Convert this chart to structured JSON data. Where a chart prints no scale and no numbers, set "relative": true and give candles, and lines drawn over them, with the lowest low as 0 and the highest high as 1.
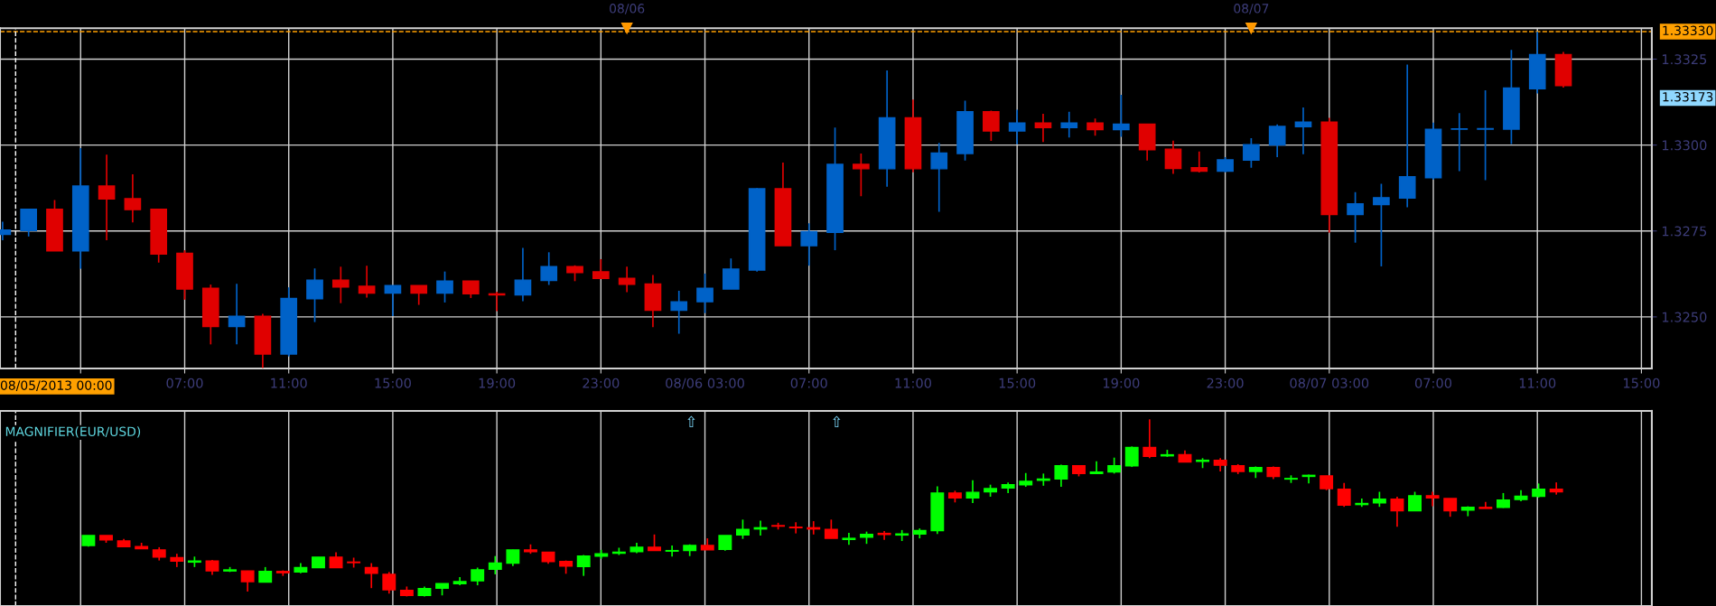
{
  "chart_data": [
    {
      "type": "candlestick",
      "x": [
        "2013-08-05T00:00",
        "2013-08-05T01:00",
        "2013-08-05T02:00",
        "2013-08-05T03:00",
        "2013-08-05T04:00",
        "2013-08-05T05:00",
        "2013-08-05T06:00",
        "2013-08-05T07:00",
        "2013-08-05T08:00",
        "2013-08-05T09:00",
        "2013-08-05T10:00",
        "2013-08-05T11:00",
        "2013-08-05T12:00",
        "2013-08-05T13:00",
        "2013-08-05T14:00",
        "2013-08-05T15:00",
        "2013-08-05T16:00",
        "2013-08-05T17:00",
        "2013-08-05T18:00",
        "2013-08-05T19:00",
        "2013-08-05T20:00",
        "2013-08-05T21:00",
        "2013-08-05T22:00",
        "2013-08-05T23:00",
        "2013-08-06T00:00",
        "2013-08-06T01:00",
        "2013-08-06T02:00",
        "2013-08-06T03:00",
        "2013-08-06T04:00",
        "2013-08-06T05:00",
        "2013-08-06T06:00",
        "2013-08-06T07:00",
        "2013-08-06T08:00",
        "2013-08-06T09:00",
        "2013-08-06T10:00",
        "2013-08-06T11:00",
        "2013-08-06T12:00",
        "2013-08-06T13:00",
        "2013-08-06T14:00",
        "2013-08-06T15:00",
        "2013-08-06T16:00",
        "2013-08-06T17:00",
        "2013-08-06T18:00",
        "2013-08-06T19:00",
        "2013-08-06T20:00",
        "2013-08-06T21:00",
        "2013-08-06T22:00",
        "2013-08-06T23:00",
        "2013-08-07T00:00",
        "2013-08-07T01:00",
        "2013-08-07T02:00",
        "2013-08-07T03:00",
        "2013-08-07T04:00",
        "2013-08-07T05:00",
        "2013-08-07T06:00",
        "2013-08-07T07:00",
        "2013-08-07T08:00",
        "2013-08-07T09:00",
        "2013-08-07T10:00",
        "2013-08-07T11:00",
        "2013-08-07T12:00"
      ],
      "ohlc": [
        [
          1.3274,
          1.32777,
          1.32723,
          1.32753
        ],
        [
          1.32751,
          1.32813,
          1.32734,
          1.32813
        ],
        [
          1.32813,
          1.3284,
          1.32692,
          1.32692
        ],
        [
          1.32692,
          1.32991,
          1.3264,
          1.32881
        ],
        [
          1.32881,
          1.32972,
          1.32723,
          1.32843
        ],
        [
          1.32844,
          1.32915,
          1.32775,
          1.32812
        ],
        [
          1.32813,
          1.32815,
          1.32658,
          1.32683
        ],
        [
          1.32685,
          1.32694,
          1.3255,
          1.32581
        ],
        [
          1.32583,
          1.32594,
          1.3242,
          1.32472
        ],
        [
          1.32472,
          1.32596,
          1.3242,
          1.32502
        ],
        [
          1.32502,
          1.32509,
          1.32351,
          1.32392
        ],
        [
          1.32392,
          1.32586,
          1.32385,
          1.32554
        ],
        [
          1.32553,
          1.32641,
          1.32485,
          1.32607
        ],
        [
          1.32607,
          1.32646,
          1.3254,
          1.32587
        ],
        [
          1.32589,
          1.32649,
          1.32556,
          1.32569
        ],
        [
          1.32569,
          1.32591,
          1.32502,
          1.32591
        ],
        [
          1.32591,
          1.32591,
          1.32535,
          1.32569
        ],
        [
          1.32569,
          1.32632,
          1.32542,
          1.32604
        ],
        [
          1.32604,
          1.32604,
          1.32555,
          1.32567
        ],
        [
          1.32567,
          1.32573,
          1.32517,
          1.32564
        ],
        [
          1.32564,
          1.32701,
          1.32546,
          1.32607
        ],
        [
          1.32606,
          1.32688,
          1.32593,
          1.32646
        ],
        [
          1.32646,
          1.3265,
          1.32604,
          1.32629
        ],
        [
          1.32631,
          1.32668,
          1.32612,
          1.32612
        ],
        [
          1.32612,
          1.32646,
          1.32572,
          1.32595
        ],
        [
          1.32596,
          1.32622,
          1.3247,
          1.32519
        ],
        [
          1.32519,
          1.32576,
          1.32451,
          1.32544
        ],
        [
          1.32544,
          1.32626,
          1.32511,
          1.32583
        ],
        [
          1.32581,
          1.3267,
          1.32581,
          1.32639
        ],
        [
          1.32636,
          1.32875,
          1.32632,
          1.32873
        ],
        [
          1.32873,
          1.32949,
          1.32707,
          1.32707
        ],
        [
          1.32707,
          1.32772,
          1.32649,
          1.32748
        ],
        [
          1.32746,
          1.33051,
          1.32694,
          1.32944
        ],
        [
          1.32944,
          1.32975,
          1.32851,
          1.32931
        ],
        [
          1.32931,
          1.33217,
          1.32879,
          1.33079
        ],
        [
          1.33079,
          1.33132,
          1.32921,
          1.32931
        ],
        [
          1.32931,
          1.33006,
          1.32806,
          1.32977
        ],
        [
          1.32975,
          1.33129,
          1.32955,
          1.33097
        ],
        [
          1.33097,
          1.331,
          1.33012,
          1.33041
        ],
        [
          1.33041,
          1.33103,
          1.33002,
          1.33064
        ],
        [
          1.33064,
          1.33091,
          1.33009,
          1.33051
        ],
        [
          1.33051,
          1.33097,
          1.33022,
          1.33064
        ],
        [
          1.33064,
          1.33077,
          1.33027,
          1.33045
        ],
        [
          1.33045,
          1.33146,
          1.33024,
          1.33061
        ],
        [
          1.33061,
          1.33061,
          1.32955,
          1.32986
        ],
        [
          1.32988,
          1.33013,
          1.32916,
          1.32932
        ],
        [
          1.32934,
          1.32981,
          1.3292,
          1.32924
        ],
        [
          1.32924,
          1.32965,
          1.32921,
          1.32957
        ],
        [
          1.32956,
          1.3302,
          1.32934,
          1.33001
        ],
        [
          1.33,
          1.3306,
          1.32965,
          1.33054
        ],
        [
          1.33053,
          1.33109,
          1.32973,
          1.33067
        ],
        [
          1.33067,
          1.33079,
          1.32745,
          1.32798
        ],
        [
          1.32798,
          1.32863,
          1.32716,
          1.32829
        ],
        [
          1.32827,
          1.32887,
          1.32647,
          1.32847
        ],
        [
          1.32846,
          1.33234,
          1.32819,
          1.32908
        ],
        [
          1.32905,
          1.33065,
          1.32899,
          1.33046
        ],
        [
          1.33046,
          1.33093,
          1.32924,
          1.33047
        ],
        [
          1.33046,
          1.33159,
          1.32898,
          1.33048
        ],
        [
          1.33046,
          1.33277,
          1.33003,
          1.33166
        ],
        [
          1.33164,
          1.3333,
          1.3315,
          1.33263
        ],
        [
          1.33263,
          1.33271,
          1.33167,
          1.33173
        ]
      ],
      "colors": [
        "#0062c8",
        "#0062c8",
        "#e00000",
        "#0062c8",
        "#e00000",
        "#e00000",
        "#e00000",
        "#e00000",
        "#e00000",
        "#0062c8",
        "#e00000",
        "#0062c8",
        "#0062c8",
        "#e00000",
        "#e00000",
        "#0062c8",
        "#e00000",
        "#0062c8",
        "#e00000",
        "#e00000",
        "#0062c8",
        "#0062c8",
        "#e00000",
        "#e00000",
        "#e00000",
        "#e00000",
        "#0062c8",
        "#0062c8",
        "#0062c8",
        "#0062c8",
        "#e00000",
        "#0062c8",
        "#0062c8",
        "#e00000",
        "#0062c8",
        "#e00000",
        "#0062c8",
        "#0062c8",
        "#e00000",
        "#0062c8",
        "#e00000",
        "#0062c8",
        "#e00000",
        "#0062c8",
        "#e00000",
        "#e00000",
        "#e00000",
        "#0062c8",
        "#0062c8",
        "#0062c8",
        "#0062c8",
        "#e00000",
        "#0062c8",
        "#0062c8",
        "#0062c8",
        "#0062c8",
        "#0062c8",
        "#0062c8",
        "#0062c8",
        "#0062c8",
        "#e00000"
      ],
      "xlim": [
        "2013-08-04T23:54",
        "2013-08-07T15:24"
      ],
      "xticks": [
        {
          "value": "2013-08-05T03:00",
          "label": null
        },
        {
          "value": "2013-08-05T07:00",
          "label": "07:00"
        },
        {
          "value": "2013-08-05T11:00",
          "label": "11:00"
        },
        {
          "value": "2013-08-05T15:00",
          "label": "15:00"
        },
        {
          "value": "2013-08-05T19:00",
          "label": "19:00"
        },
        {
          "value": "2013-08-05T23:00",
          "label": "23:00"
        },
        {
          "value": "2013-08-06T03:00",
          "label": "08/06 03:00"
        },
        {
          "value": "2013-08-06T07:00",
          "label": "07:00"
        },
        {
          "value": "2013-08-06T11:00",
          "label": "11:00"
        },
        {
          "value": "2013-08-06T15:00",
          "label": "15:00"
        },
        {
          "value": "2013-08-06T19:00",
          "label": "19:00"
        },
        {
          "value": "2013-08-06T23:00",
          "label": "23:00"
        },
        {
          "value": "2013-08-07T03:00",
          "label": "08/07 03:00"
        },
        {
          "value": "2013-08-07T07:00",
          "label": "07:00"
        },
        {
          "value": "2013-08-07T11:00",
          "label": "11:00"
        },
        {
          "value": "2013-08-07T15:00",
          "label": "15:00"
        }
      ],
      "x2lim": [
        "2013-08-04T23:54",
        "2013-08-07T15:24"
      ],
      "x2ticks": [
        {
          "value": "2013-08-06",
          "label": "08/06"
        },
        {
          "value": "2013-08-07",
          "label": "08/07"
        }
      ],
      "ylim": [
        1.3235,
        1.3334
      ],
      "yticks": [
        {
          "value": 1.325,
          "label": "1.3250"
        },
        {
          "value": 1.3275,
          "label": "1.3275"
        },
        {
          "value": 1.33,
          "label": "1.3300"
        },
        {
          "value": 1.3325,
          "label": "1.3325"
        }
      ],
      "grid": true,
      "ref_lines": [
        {
          "axis": "y",
          "value": 1.3333,
          "label": "1.33330",
          "color": "#ffa000",
          "line_style": "dashed"
        },
        {
          "axis": "x",
          "value": "2013-08-05T00:30",
          "color": "#ffffff",
          "line_style": "dashed"
        }
      ],
      "annotations": [
        "08/05/2013 00:00",
        "1.33173"
      ]
    },
    {
      "type": "candlestick",
      "title": "MAGNIFIER(EUR/USD)",
      "relative": true,
      "categories": [
        null,
        null,
        null,
        null,
        null,
        null,
        null,
        null,
        null,
        null,
        null,
        null,
        null,
        null,
        null,
        null,
        null,
        null,
        null,
        null,
        null,
        null,
        null,
        null,
        null,
        null,
        null,
        null,
        null,
        null,
        null,
        null,
        null,
        null,
        null,
        null,
        null,
        null,
        null,
        null,
        null,
        null,
        null,
        null,
        null,
        null,
        null,
        null,
        null,
        null,
        null,
        null,
        null,
        null,
        null,
        null,
        null,
        null,
        null,
        null,
        null,
        null,
        null,
        null,
        null,
        null,
        null,
        null,
        null,
        null,
        null,
        null,
        null,
        null,
        null,
        null,
        null,
        null,
        null,
        null,
        null,
        null,
        null,
        null
      ],
      "ohlc": [
        [
          0.288,
          0.344,
          0.281,
          0.344
        ],
        [
          0.344,
          0.344,
          0.303,
          0.319
        ],
        [
          0.313,
          0.325,
          0.281,
          0.281
        ],
        [
          0.281,
          0.303,
          0.269,
          0.269
        ],
        [
          0.263,
          0.278,
          0.203,
          0.222
        ],
        [
          0.219,
          0.241,
          0.166,
          0.2
        ],
        [
          0.194,
          0.225,
          0.166,
          0.2
        ],
        [
          0.2,
          0.206,
          0.122,
          0.144
        ],
        [
          0.144,
          0.166,
          0.138,
          0.15
        ],
        [
          0.144,
          0.144,
          0.028,
          0.084
        ],
        [
          0.081,
          0.166,
          0.081,
          0.141
        ],
        [
          0.141,
          0.147,
          0.116,
          0.134
        ],
        [
          0.138,
          0.188,
          0.131,
          0.163
        ],
        [
          0.163,
          0.222,
          0.163,
          0.222
        ],
        [
          0.222,
          0.25,
          0.163,
          0.163
        ],
        [
          0.194,
          0.219,
          0.163,
          0.191
        ],
        [
          0.163,
          0.188,
          0.047,
          0.131
        ],
        [
          0.125,
          0.138,
          0.016,
          0.038
        ],
        [
          0.034,
          0.056,
          0.0,
          0.006
        ],
        [
          0.006,
          0.056,
          0.0,
          0.044
        ],
        [
          0.047,
          0.072,
          0.006,
          0.072
        ],
        [
          0.072,
          0.109,
          0.063,
          0.084
        ],
        [
          0.088,
          0.163,
          0.063,
          0.15
        ],
        [
          0.153,
          0.228,
          0.125,
          0.188
        ],
        [
          0.188,
          0.263,
          0.172,
          0.263
        ],
        [
          0.263,
          0.294,
          0.241,
          0.253
        ],
        [
          0.25,
          0.25,
          0.184,
          0.197
        ],
        [
          0.197,
          0.203,
          0.128,
          0.172
        ],
        [
          0.169,
          0.234,
          0.116,
          0.228
        ],
        [
          0.228,
          0.263,
          0.213,
          0.241
        ],
        [
          0.244,
          0.275,
          0.234,
          0.25
        ],
        [
          0.253,
          0.303,
          0.244,
          0.278
        ],
        [
          0.278,
          0.35,
          0.259,
          0.259
        ],
        [
          0.256,
          0.288,
          0.225,
          0.259
        ],
        [
          0.259,
          0.294,
          0.228,
          0.288
        ],
        [
          0.288,
          0.328,
          0.263,
          0.263
        ],
        [
          0.266,
          0.344,
          0.259,
          0.344
        ],
        [
          0.347,
          0.434,
          0.325,
          0.378
        ],
        [
          0.381,
          0.428,
          0.344,
          0.388
        ],
        [
          0.4,
          0.416,
          0.378,
          0.397
        ],
        [
          0.391,
          0.419,
          0.356,
          0.388
        ],
        [
          0.388,
          0.425,
          0.35,
          0.381
        ],
        [
          0.378,
          0.434,
          0.328,
          0.328
        ],
        [
          0.322,
          0.359,
          0.291,
          0.328
        ],
        [
          0.334,
          0.366,
          0.297,
          0.35
        ],
        [
          0.356,
          0.369,
          0.319,
          0.35
        ],
        [
          0.347,
          0.375,
          0.313,
          0.353
        ],
        [
          0.353,
          0.384,
          0.328,
          0.372
        ],
        [
          0.372,
          0.622,
          0.353,
          0.584
        ],
        [
          0.584,
          0.597,
          0.531,
          0.556
        ],
        [
          0.556,
          0.656,
          0.528,
          0.588
        ],
        [
          0.591,
          0.631,
          0.563,
          0.609
        ],
        [
          0.613,
          0.644,
          0.584,
          0.631
        ],
        [
          0.631,
          0.697,
          0.619,
          0.65
        ],
        [
          0.656,
          0.694,
          0.625,
          0.663
        ],
        [
          0.663,
          0.744,
          0.619,
          0.738
        ],
        [
          0.738,
          0.738,
          0.678,
          0.694
        ],
        [
          0.694,
          0.763,
          0.691,
          0.703
        ],
        [
          0.703,
          0.784,
          0.694,
          0.738
        ],
        [
          0.738,
          0.847,
          0.731,
          0.841
        ],
        [
          0.841,
          1.0,
          0.781,
          0.791
        ],
        [
          0.794,
          0.828,
          0.788,
          0.8
        ],
        [
          0.8,
          0.825,
          0.759,
          0.759
        ],
        [
          0.763,
          0.781,
          0.725,
          0.769
        ],
        [
          0.769,
          0.781,
          0.706,
          0.741
        ],
        [
          0.738,
          0.747,
          0.691,
          0.706
        ],
        [
          0.706,
          0.734,
          0.669,
          0.728
        ],
        [
          0.728,
          0.734,
          0.663,
          0.678
        ],
        [
          0.663,
          0.684,
          0.641,
          0.666
        ],
        [
          0.678,
          0.688,
          0.638,
          0.684
        ],
        [
          0.681,
          0.681,
          0.6,
          0.609
        ],
        [
          0.606,
          0.641,
          0.506,
          0.516
        ],
        [
          0.519,
          0.553,
          0.506,
          0.525
        ],
        [
          0.528,
          0.591,
          0.506,
          0.55
        ],
        [
          0.55,
          0.563,
          0.394,
          0.484
        ],
        [
          0.484,
          0.591,
          0.484,
          0.569
        ],
        [
          0.569,
          0.591,
          0.509,
          0.556
        ],
        [
          0.553,
          0.553,
          0.45,
          0.484
        ],
        [
          0.488,
          0.509,
          0.453,
          0.503
        ],
        [
          0.503,
          0.534,
          0.497,
          0.497
        ],
        [
          0.503,
          0.584,
          0.5,
          0.544
        ],
        [
          0.547,
          0.6,
          0.538,
          0.566
        ],
        [
          0.566,
          0.638,
          0.559,
          0.606
        ],
        [
          0.606,
          0.644,
          0.575,
          0.591
        ]
      ],
      "colors": [
        "#00ff00",
        "#ff0000",
        "#ff0000",
        "#ff0000",
        "#ff0000",
        "#ff0000",
        "#00ff00",
        "#ff0000",
        "#00ff00",
        "#ff0000",
        "#00ff00",
        "#ff0000",
        "#00ff00",
        "#00ff00",
        "#ff0000",
        "#ff0000",
        "#ff0000",
        "#ff0000",
        "#ff0000",
        "#00ff00",
        "#00ff00",
        "#00ff00",
        "#00ff00",
        "#00ff00",
        "#00ff00",
        "#ff0000",
        "#ff0000",
        "#ff0000",
        "#00ff00",
        "#00ff00",
        "#00ff00",
        "#00ff00",
        "#ff0000",
        "#00ff00",
        "#00ff00",
        "#ff0000",
        "#00ff00",
        "#00ff00",
        "#00ff00",
        "#ff0000",
        "#ff0000",
        "#ff0000",
        "#ff0000",
        "#00ff00",
        "#00ff00",
        "#ff0000",
        "#00ff00",
        "#00ff00",
        "#00ff00",
        "#ff0000",
        "#00ff00",
        "#00ff00",
        "#00ff00",
        "#00ff00",
        "#00ff00",
        "#00ff00",
        "#ff0000",
        "#00ff00",
        "#00ff00",
        "#00ff00",
        "#ff0000",
        "#00ff00",
        "#ff0000",
        "#00ff00",
        "#ff0000",
        "#ff0000",
        "#00ff00",
        "#ff0000",
        "#00ff00",
        "#00ff00",
        "#ff0000",
        "#ff0000",
        "#00ff00",
        "#00ff00",
        "#ff0000",
        "#00ff00",
        "#ff0000",
        "#ff0000",
        "#00ff00",
        "#ff0000",
        "#00ff00",
        "#00ff00",
        "#00ff00",
        "#ff0000"
      ],
      "grid": "x",
      "annotations": [
        "⇧",
        "⇧"
      ]
    }
  ]
}
